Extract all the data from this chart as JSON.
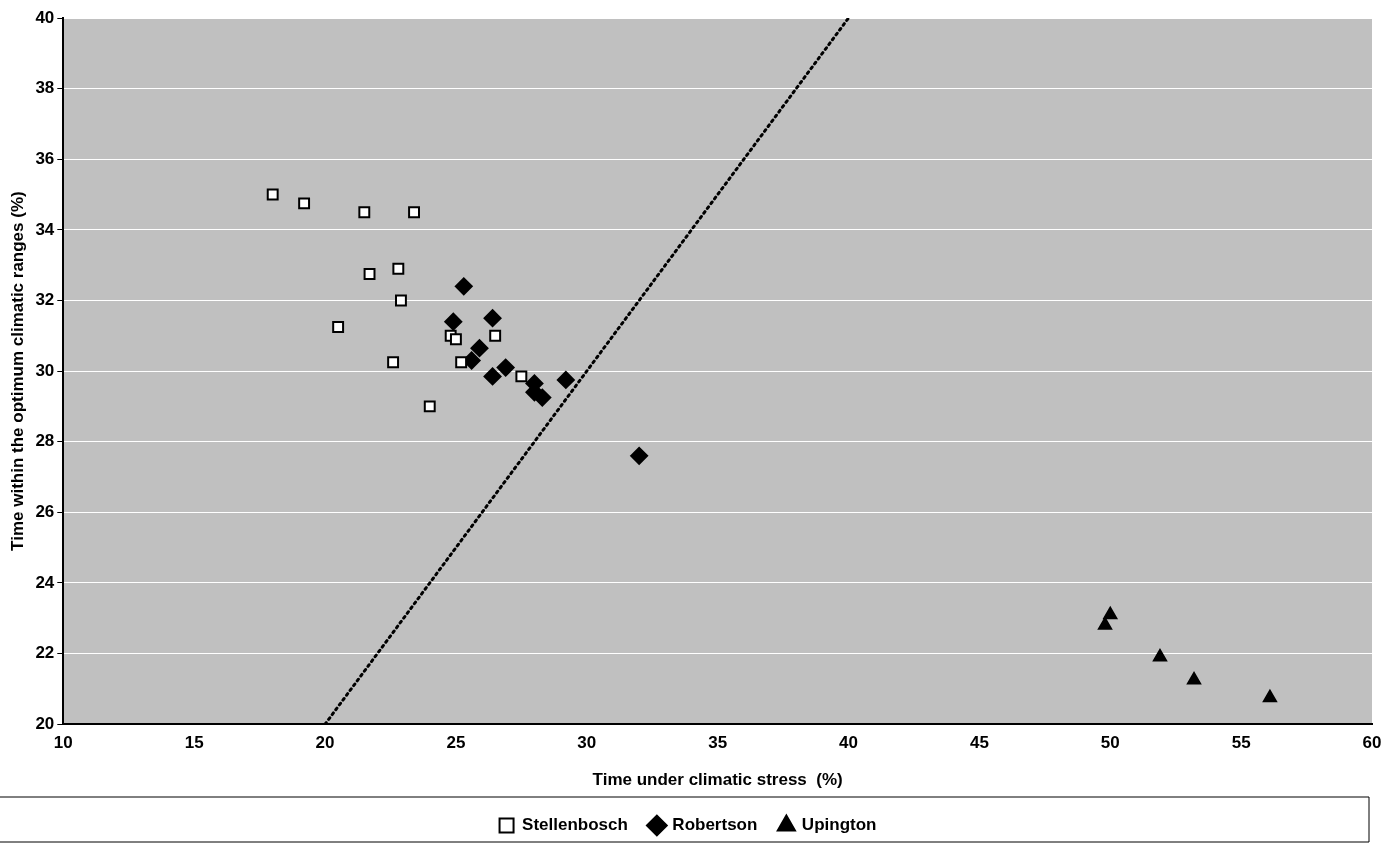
{
  "chart_data": {
    "type": "scatter",
    "xlabel": "Time under climatic stress  (%)",
    "ylabel": "Time within the optimum climatic ranges (%)",
    "xlim": [
      10,
      60
    ],
    "xticks": [
      10,
      15,
      20,
      25,
      30,
      35,
      40,
      45,
      50,
      55,
      60
    ],
    "ylim": [
      20,
      40
    ],
    "yticks": [
      20,
      22,
      24,
      26,
      28,
      30,
      32,
      34,
      36,
      38,
      40
    ],
    "grid": "y",
    "legend": "bottom",
    "series": [
      {
        "name": "Stellenbosch",
        "color": "#ffffff",
        "marker": "square",
        "x": [
          18.0,
          19.2,
          21.5,
          23.4,
          21.7,
          22.8,
          22.9,
          20.5,
          24.8,
          25.0,
          26.5,
          22.6,
          25.2,
          27.5,
          24.0
        ],
        "values": [
          35.0,
          34.75,
          34.5,
          34.5,
          32.75,
          32.9,
          32.0,
          31.25,
          31.0,
          30.9,
          31.0,
          30.25,
          30.25,
          29.85,
          29.0
        ]
      },
      {
        "name": "Robertson",
        "color": "#000000",
        "marker": "diamond",
        "x": [
          25.3,
          24.9,
          26.4,
          25.9,
          25.6,
          26.9,
          26.4,
          28.0,
          28.3,
          28.0,
          29.2,
          32.0
        ],
        "values": [
          32.4,
          31.4,
          31.5,
          30.65,
          30.3,
          30.1,
          29.85,
          29.65,
          29.25,
          29.4,
          29.75,
          27.6
        ]
      },
      {
        "name": "Upington",
        "color": "#000000",
        "marker": "triangle",
        "x": [
          49.8,
          50.0,
          51.9,
          53.2,
          56.1
        ],
        "values": [
          22.8,
          23.1,
          21.9,
          21.25,
          20.75
        ]
      },
      {
        "type": "line",
        "color": "#000000",
        "marker": "none",
        "line_style": "dotted",
        "x": [
          20,
          40
        ],
        "values": [
          20,
          40
        ]
      }
    ]
  }
}
